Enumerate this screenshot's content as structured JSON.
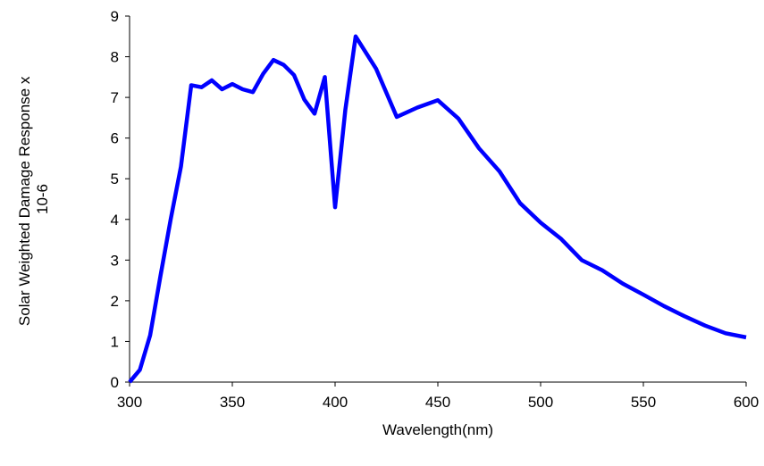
{
  "chart_data": {
    "type": "line",
    "title": "",
    "xlabel": "Wavelength(nm)",
    "ylabel_lines": [
      "Solar Weighted Damage Response x",
      "10-6"
    ],
    "xlim": [
      300,
      600
    ],
    "ylim": [
      0,
      9
    ],
    "xticks": [
      300,
      350,
      400,
      450,
      500,
      550,
      600
    ],
    "yticks": [
      0,
      1,
      2,
      3,
      4,
      5,
      6,
      7,
      8,
      9
    ],
    "grid": false,
    "legend": "none",
    "series": [
      {
        "color": "#0000ff",
        "x": [
          300,
          305,
          310,
          315,
          320,
          325,
          330,
          335,
          340,
          345,
          350,
          355,
          360,
          365,
          370,
          375,
          380,
          385,
          390,
          395,
          400,
          405,
          410,
          420,
          430,
          440,
          450,
          460,
          470,
          480,
          490,
          500,
          510,
          520,
          530,
          540,
          550,
          560,
          570,
          580,
          590,
          600
        ],
        "y": [
          0.0,
          0.3,
          1.15,
          2.6,
          4.0,
          5.3,
          7.3,
          7.25,
          7.42,
          7.2,
          7.33,
          7.2,
          7.13,
          7.58,
          7.92,
          7.8,
          7.55,
          6.95,
          6.6,
          7.5,
          4.3,
          6.7,
          8.5,
          7.7,
          6.52,
          6.75,
          6.93,
          6.48,
          5.75,
          5.18,
          4.4,
          3.92,
          3.52,
          3.0,
          2.75,
          2.42,
          2.15,
          1.87,
          1.62,
          1.39,
          1.2,
          1.1
        ]
      }
    ]
  }
}
